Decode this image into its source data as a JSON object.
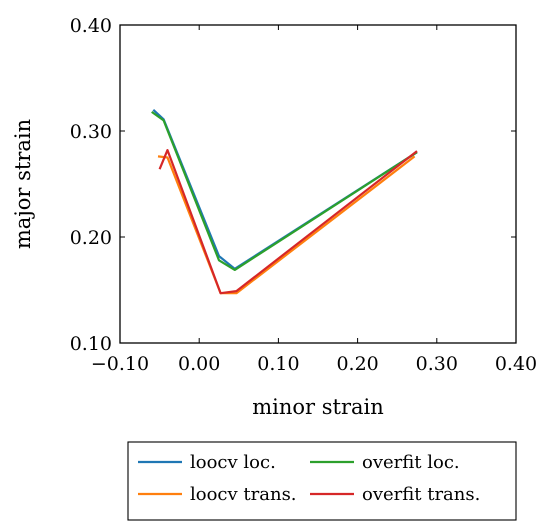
{
  "chart_data": {
    "type": "line",
    "title": "",
    "xlabel": "minor strain",
    "ylabel": "major strain",
    "xlim": [
      -0.1,
      0.4
    ],
    "ylim": [
      0.1,
      0.4
    ],
    "xticks": [
      -0.1,
      0.0,
      0.1,
      0.2,
      0.3,
      0.4
    ],
    "xtick_labels": [
      "−0.10",
      "0.00",
      "0.10",
      "0.20",
      "0.30",
      "0.40"
    ],
    "yticks": [
      0.1,
      0.2,
      0.3,
      0.4
    ],
    "ytick_labels": [
      "0.10",
      "0.20",
      "0.30",
      "0.40"
    ],
    "grid": false,
    "legend_position": "below",
    "series": [
      {
        "name": "loocv loc.",
        "color": "#1f77b4",
        "x": [
          -0.058,
          -0.045,
          0.025,
          0.045,
          0.275
        ],
        "y": [
          0.32,
          0.311,
          0.182,
          0.17,
          0.28
        ]
      },
      {
        "name": "overfit loc.",
        "color": "#2ca02c",
        "x": [
          -0.06,
          -0.045,
          0.025,
          0.045,
          0.275
        ],
        "y": [
          0.318,
          0.31,
          0.178,
          0.169,
          0.28
        ]
      },
      {
        "name": "loocv trans.",
        "color": "#ff7f0e",
        "x": [
          -0.052,
          -0.04,
          0.027,
          0.047,
          0.272
        ],
        "y": [
          0.276,
          0.275,
          0.147,
          0.147,
          0.276
        ]
      },
      {
        "name": "overfit trans.",
        "color": "#d62728",
        "x": [
          -0.05,
          -0.04,
          0.027,
          0.047,
          0.275
        ],
        "y": [
          0.264,
          0.282,
          0.147,
          0.149,
          0.281
        ]
      }
    ]
  }
}
